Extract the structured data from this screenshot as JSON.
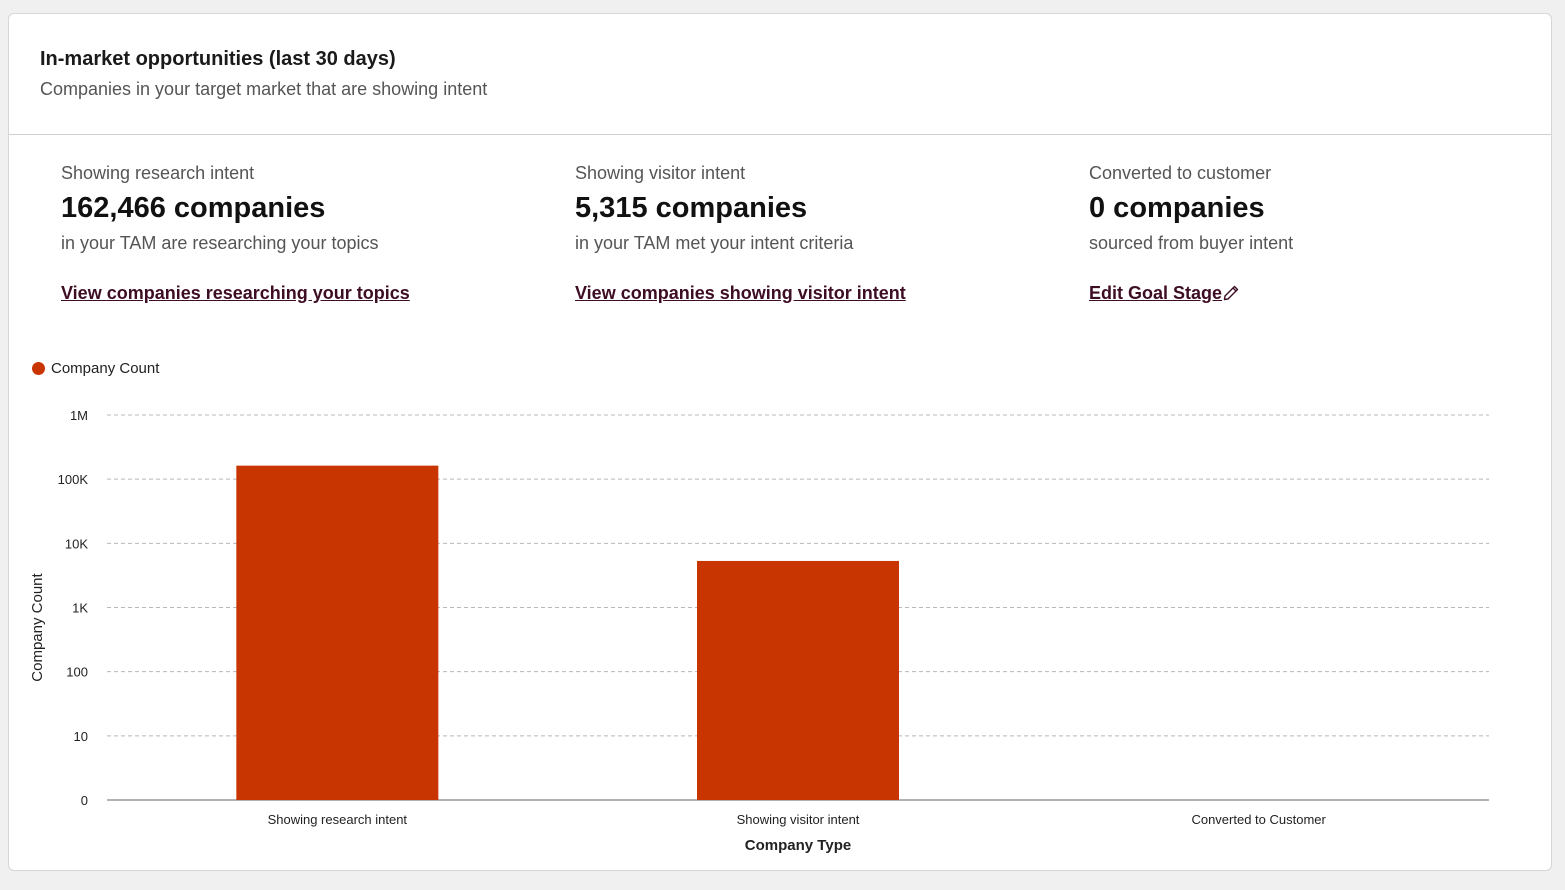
{
  "header": {
    "title": "In-market opportunities (last 30 days)",
    "subtitle": "Companies in your target market that are showing intent"
  },
  "stats": [
    {
      "label": "Showing research intent",
      "value": "162,466 companies",
      "description": "in your TAM are researching your topics",
      "link": "View companies researching your topics"
    },
    {
      "label": "Showing visitor intent",
      "value": "5,315 companies",
      "description": "in your TAM met your intent criteria",
      "link": "View companies showing visitor intent"
    },
    {
      "label": "Converted to customer",
      "value": "0 companies",
      "description": "sourced from buyer intent",
      "link": "Edit Goal Stage",
      "link_icon": "pencil-icon"
    }
  ],
  "colors": {
    "bar": "#c93500",
    "link": "#3d0d24"
  },
  "chart_data": {
    "type": "bar",
    "scale": "log",
    "title": "",
    "legend": [
      "Company Count"
    ],
    "legend_position": "top-left",
    "categories": [
      "Showing research intent",
      "Showing visitor intent",
      "Converted to Customer"
    ],
    "series": [
      {
        "name": "Company Count",
        "values": [
          162466,
          5315,
          0
        ]
      }
    ],
    "xlabel": "Company Type",
    "ylabel": "Company Count",
    "yticks": [
      "0",
      "10",
      "100",
      "1K",
      "10K",
      "100K",
      "1M"
    ],
    "ytick_values": [
      0,
      10,
      100,
      1000,
      10000,
      100000,
      1000000
    ],
    "grid": true
  }
}
